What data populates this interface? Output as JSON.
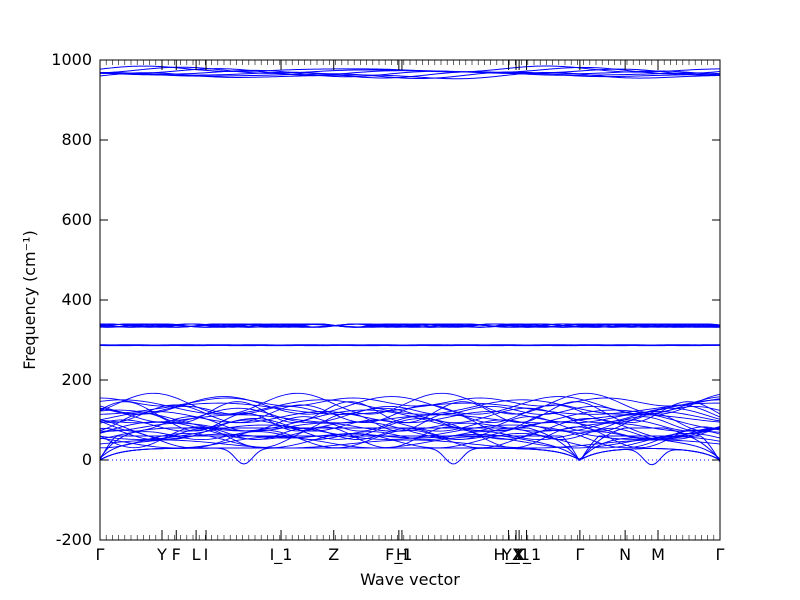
{
  "chart_data": {
    "type": "line",
    "title": "",
    "xlabel": "Wave vector",
    "ylabel": "Frequency (cm⁻¹)",
    "ylim": [
      -200,
      1000
    ],
    "yticks": [
      -200,
      0,
      200,
      400,
      600,
      800,
      1000
    ],
    "xlim": [
      0,
      1
    ],
    "grid": false,
    "legend": "none",
    "color": "#0000ff",
    "zero_line": {
      "y": 0,
      "style": "dotted",
      "color": "#0000ff"
    },
    "high_symmetry_points": [
      {
        "label": "Γ",
        "x": 0.0
      },
      {
        "label": "Y",
        "x": 0.1
      },
      {
        "label": "F",
        "x": 0.123
      },
      {
        "label": "L",
        "x": 0.155
      },
      {
        "label": "I",
        "x": 0.171
      },
      {
        "label": "I_1",
        "x": 0.292
      },
      {
        "label": "Z",
        "x": 0.377
      },
      {
        "label": "F_1",
        "x": 0.482
      },
      {
        "label": "H",
        "x": 0.487
      },
      {
        "label": "H_1",
        "x": 0.659
      },
      {
        "label": "Y_1",
        "x": 0.671
      },
      {
        "label": "X",
        "x": 0.676
      },
      {
        "label": "X_1",
        "x": 0.688
      },
      {
        "label": "Γ",
        "x": 0.774
      },
      {
        "label": "N",
        "x": 0.847
      },
      {
        "label": "M",
        "x": 0.9
      },
      {
        "label": "Γ",
        "x": 1.0
      }
    ],
    "band_groups": [
      {
        "name": "high",
        "range": [
          958,
          985
        ]
      },
      {
        "name": "mid",
        "range": [
          330,
          342
        ]
      },
      {
        "name": "mid_flat",
        "range": [
          285,
          289
        ]
      },
      {
        "name": "low",
        "range": [
          0,
          150
        ]
      }
    ],
    "imaginary_dips": [
      {
        "x": 0.232,
        "y": -10
      },
      {
        "x": 0.57,
        "y": -10
      },
      {
        "x": 0.89,
        "y": -12
      }
    ]
  }
}
